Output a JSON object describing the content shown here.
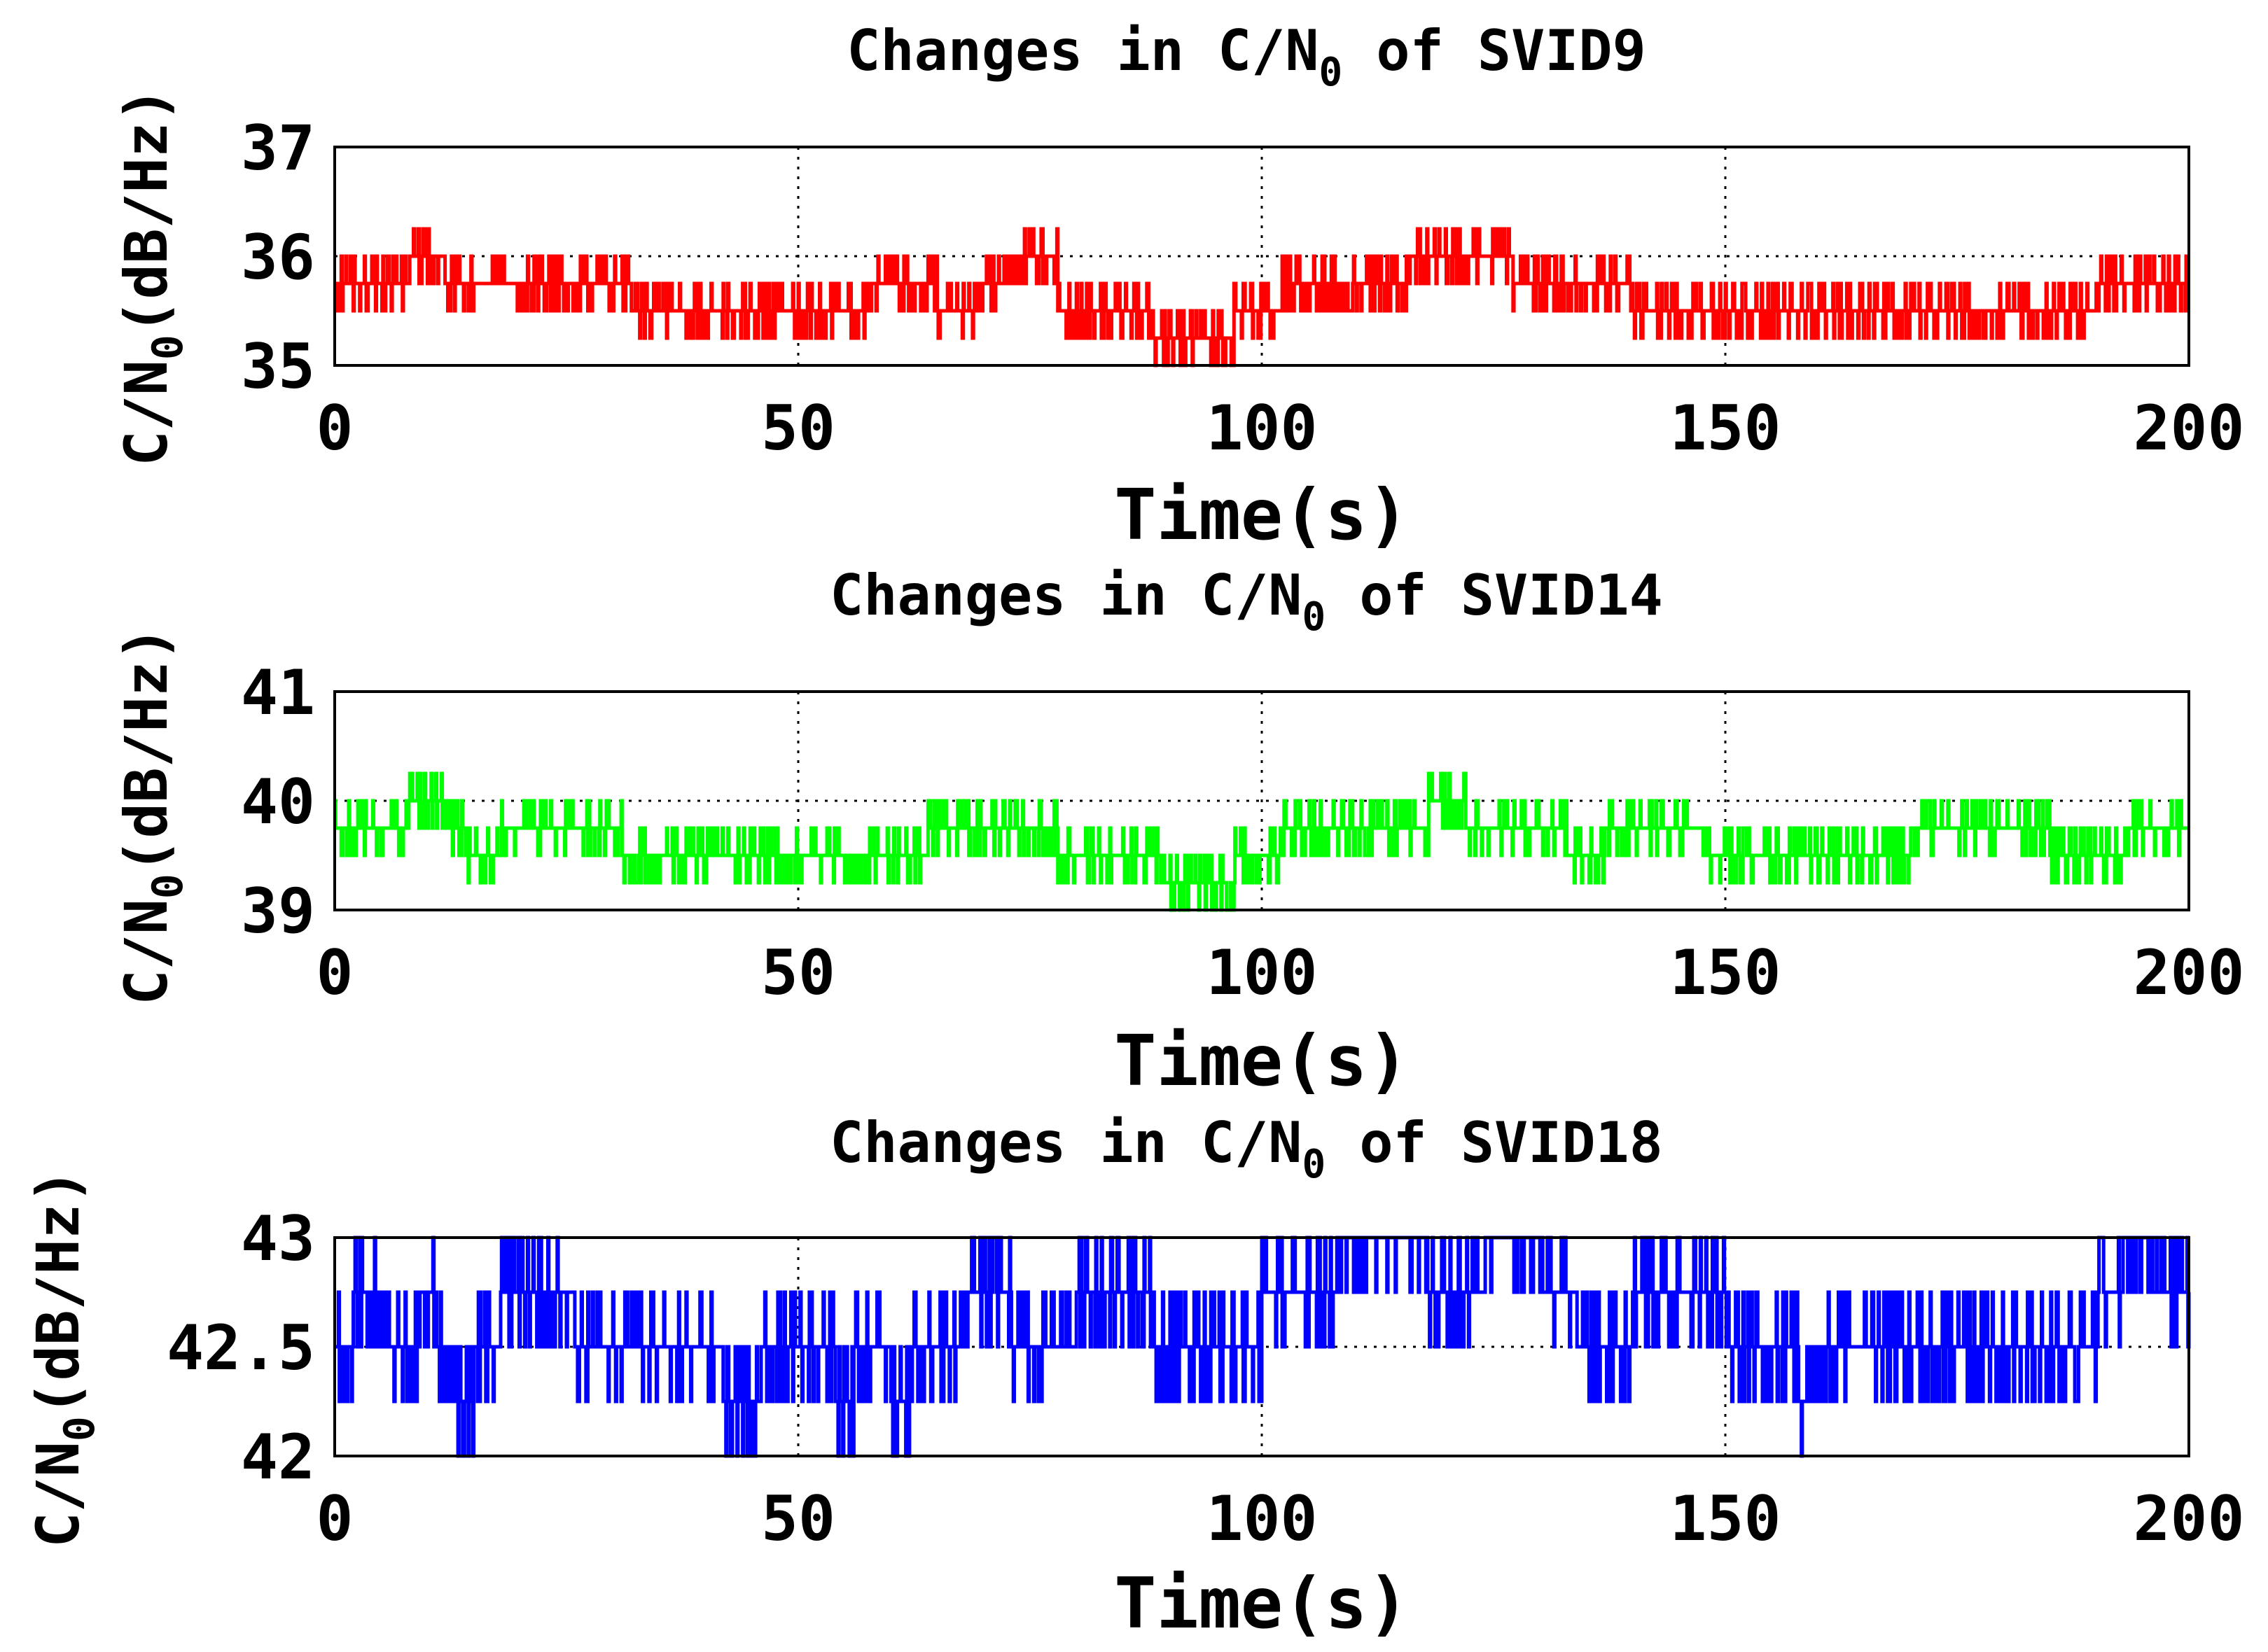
{
  "figure": {
    "description_free": true
  },
  "chart_data": [
    {
      "type": "line",
      "title_main": "Changes in C/N",
      "title_sub": "0",
      "title_tail": " of SVID9",
      "xlabel": "Time(s)",
      "ylabel_main": "C/N",
      "ylabel_sub": "0",
      "ylabel_tail": "(dB/Hz)",
      "xlim": [
        0,
        200
      ],
      "ylim": [
        35,
        37
      ],
      "xticks": [
        0,
        50,
        100,
        150,
        200
      ],
      "yticks": [
        35,
        36,
        37
      ],
      "ytick_labels": [
        "35",
        "36",
        "37"
      ],
      "grid": true,
      "color": "#ff0000",
      "quant": 0.25,
      "noise_levels": [
        -0.25,
        0.25
      ],
      "baseline": [
        [
          0,
          35.75
        ],
        [
          5,
          35.75
        ],
        [
          8,
          36.0
        ],
        [
          12,
          35.75
        ],
        [
          20,
          35.75
        ],
        [
          28,
          35.75
        ],
        [
          32,
          35.5
        ],
        [
          38,
          35.5
        ],
        [
          45,
          35.5
        ],
        [
          52,
          35.5
        ],
        [
          58,
          35.75
        ],
        [
          65,
          35.5
        ],
        [
          70,
          35.75
        ],
        [
          74,
          36.0
        ],
        [
          78,
          35.5
        ],
        [
          84,
          35.5
        ],
        [
          88,
          35.25
        ],
        [
          93,
          35.25
        ],
        [
          97,
          35.5
        ],
        [
          102,
          35.75
        ],
        [
          110,
          35.75
        ],
        [
          116,
          36.0
        ],
        [
          122,
          36.0
        ],
        [
          127,
          35.75
        ],
        [
          135,
          35.75
        ],
        [
          140,
          35.5
        ],
        [
          150,
          35.5
        ],
        [
          160,
          35.5
        ],
        [
          170,
          35.5
        ],
        [
          180,
          35.5
        ],
        [
          186,
          35.5
        ],
        [
          190,
          35.75
        ],
        [
          196,
          35.75
        ],
        [
          200,
          35.75
        ]
      ]
    },
    {
      "type": "line",
      "title_main": "Changes in C/N",
      "title_sub": "0",
      "title_tail": " of SVID14",
      "xlabel": "Time(s)",
      "ylabel_main": "C/N",
      "ylabel_sub": "0",
      "ylabel_tail": "(dB/Hz)",
      "xlim": [
        0,
        200
      ],
      "ylim": [
        39,
        41
      ],
      "xticks": [
        0,
        50,
        100,
        150,
        200
      ],
      "yticks": [
        39,
        40,
        41
      ],
      "ytick_labels": [
        "39",
        "40",
        "41"
      ],
      "grid": true,
      "color": "#00ff00",
      "quant": 0.25,
      "noise_levels": [
        -0.25,
        0.25
      ],
      "baseline": [
        [
          0,
          39.75
        ],
        [
          5,
          39.75
        ],
        [
          8,
          40.0
        ],
        [
          12,
          39.75
        ],
        [
          14,
          39.5
        ],
        [
          18,
          39.75
        ],
        [
          28,
          39.75
        ],
        [
          31,
          39.5
        ],
        [
          40,
          39.5
        ],
        [
          55,
          39.5
        ],
        [
          62,
          39.5
        ],
        [
          64,
          39.75
        ],
        [
          75,
          39.75
        ],
        [
          78,
          39.5
        ],
        [
          86,
          39.5
        ],
        [
          89,
          39.25
        ],
        [
          95,
          39.25
        ],
        [
          97,
          39.5
        ],
        [
          102,
          39.75
        ],
        [
          110,
          39.75
        ],
        [
          118,
          40.0
        ],
        [
          122,
          39.75
        ],
        [
          130,
          39.75
        ],
        [
          133,
          39.5
        ],
        [
          137,
          39.75
        ],
        [
          145,
          39.75
        ],
        [
          148,
          39.5
        ],
        [
          165,
          39.5
        ],
        [
          170,
          39.75
        ],
        [
          180,
          39.75
        ],
        [
          185,
          39.5
        ],
        [
          191,
          39.5
        ],
        [
          193,
          39.75
        ],
        [
          200,
          39.75
        ]
      ]
    },
    {
      "type": "line",
      "title_main": "Changes in C/N",
      "title_sub": "0",
      "title_tail": " of SVID18",
      "xlabel": "Time(s)",
      "ylabel_main": "C/N",
      "ylabel_sub": "0",
      "ylabel_tail": "(dB/Hz)",
      "xlim": [
        0,
        200
      ],
      "ylim": [
        42,
        43
      ],
      "xticks": [
        0,
        50,
        100,
        150,
        200
      ],
      "yticks": [
        42,
        42.5,
        43
      ],
      "ytick_labels": [
        "42",
        "42.5",
        "43"
      ],
      "grid": true,
      "color": "#0000ff",
      "quant": 0.25,
      "noise_levels": [
        -0.25,
        0.25
      ],
      "baseline": [
        [
          0,
          42.5
        ],
        [
          2,
          42.75
        ],
        [
          6,
          42.5
        ],
        [
          9,
          42.75
        ],
        [
          11,
          42.5
        ],
        [
          12,
          42.25
        ],
        [
          15,
          42.5
        ],
        [
          18,
          42.75
        ],
        [
          26,
          42.5
        ],
        [
          40,
          42.5
        ],
        [
          42,
          42.25
        ],
        [
          46,
          42.5
        ],
        [
          54,
          42.25
        ],
        [
          56,
          42.5
        ],
        [
          60,
          42.25
        ],
        [
          62,
          42.5
        ],
        [
          68,
          42.75
        ],
        [
          73,
          42.5
        ],
        [
          80,
          42.75
        ],
        [
          88,
          42.5
        ],
        [
          95,
          42.5
        ],
        [
          100,
          42.75
        ],
        [
          108,
          43.0
        ],
        [
          118,
          42.75
        ],
        [
          124,
          43.0
        ],
        [
          130,
          42.75
        ],
        [
          134,
          42.5
        ],
        [
          140,
          42.75
        ],
        [
          150,
          42.5
        ],
        [
          158,
          42.25
        ],
        [
          160,
          42.5
        ],
        [
          170,
          42.5
        ],
        [
          180,
          42.5
        ],
        [
          190,
          42.75
        ],
        [
          193,
          43.0
        ],
        [
          196,
          42.75
        ],
        [
          200,
          42.75
        ]
      ]
    }
  ]
}
